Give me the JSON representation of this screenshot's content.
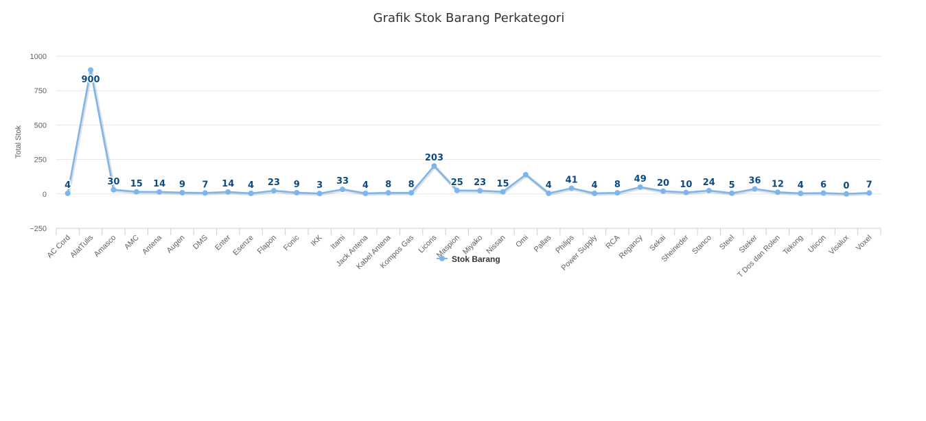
{
  "chart_data": {
    "type": "line",
    "title": "Grafik Stok Barang Perkategori",
    "xlabel": "",
    "ylabel": "Total Stok",
    "ylim": [
      -250,
      1000
    ],
    "yticks": [
      1000,
      750,
      500,
      250,
      0,
      -250
    ],
    "ytick_labels": [
      "1000",
      "750",
      "500",
      "250",
      "0",
      "−250"
    ],
    "grid": true,
    "legend_position": "bottom-center",
    "categories": [
      "AC Cord",
      "AlatTulis",
      "Amasco",
      "AMC",
      "Antena",
      "Augen",
      "DMS",
      "Enter",
      "Esenze",
      "Flapon",
      "Fonic",
      "IKK",
      "Itami",
      "Jack Antena",
      "Kabel Antena",
      "Kompos Gas",
      "Licons",
      "Maspion",
      "Miyako",
      "Nissan",
      "Omi",
      "Pallas",
      "Philips",
      "Power Supply",
      "RCA",
      "Regancy",
      "Sekai",
      "Sheineder",
      "Stanco",
      "Steel",
      "Steker",
      "T Dos dan Rolen",
      "Tekong",
      "Uticon",
      "Visalux",
      "Voxel"
    ],
    "series": [
      {
        "name": "Stok Barang",
        "color": "#7cb5ec",
        "values": [
          4,
          900,
          30,
          15,
          14,
          9,
          7,
          14,
          4,
          23,
          9,
          3,
          33,
          4,
          8,
          8,
          203,
          25,
          23,
          15,
          140,
          4,
          41,
          4,
          8,
          49,
          20,
          10,
          24,
          5,
          36,
          12,
          4,
          6,
          0,
          7
        ],
        "data_labels": [
          "4",
          "900",
          "30",
          "15",
          "14",
          "9",
          "7",
          "14",
          "4",
          "23",
          "9",
          "3",
          "33",
          "4",
          "8",
          "8",
          "203",
          "25",
          "23",
          "15",
          "",
          "4",
          "41",
          "4",
          "8",
          "49",
          "20",
          "10",
          "24",
          "5",
          "36",
          "12",
          "4",
          "6",
          "0",
          "7"
        ]
      }
    ],
    "colors": {
      "grid": "#e6e6e6",
      "axis": "#c0d0e0",
      "data_label": "#0d4a80",
      "line": "#7cb5ec"
    }
  }
}
